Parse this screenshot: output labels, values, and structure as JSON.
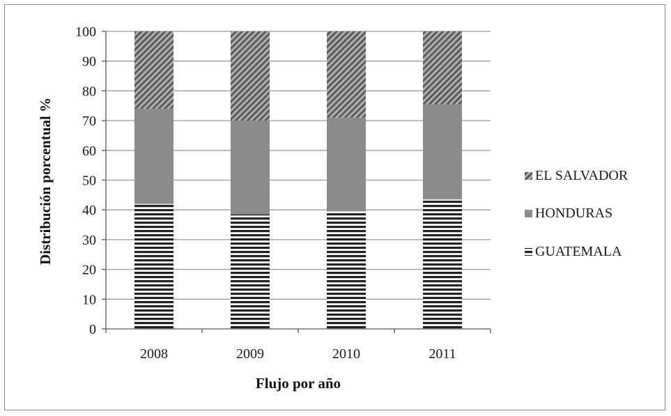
{
  "chart_data": {
    "type": "bar",
    "stacked": true,
    "categories": [
      "2008",
      "2009",
      "2010",
      "2011"
    ],
    "series": [
      {
        "name": "GUATEMALA",
        "values": [
          42,
          38.5,
          39.5,
          43.5
        ],
        "pattern": "horizontal-lines"
      },
      {
        "name": "HONDURAS",
        "values": [
          32,
          31.5,
          31.5,
          32
        ],
        "pattern": "solid-gray"
      },
      {
        "name": "EL SALVADOR",
        "values": [
          26,
          30,
          29,
          24.5
        ],
        "pattern": "diagonal-hatch"
      }
    ],
    "legend_order": [
      "EL SALVADOR",
      "HONDURAS",
      "GUATEMALA"
    ],
    "title": "",
    "xlabel": "Flujo por año",
    "ylabel": "Distribución porcentual %",
    "ylim": [
      0,
      100
    ],
    "yticks": [
      0,
      10,
      20,
      30,
      40,
      50,
      60,
      70,
      80,
      90,
      100
    ],
    "grid": true,
    "legend_position": "right",
    "colors": {
      "gray": "#8c8c8c",
      "line": "#222222",
      "grid": "#9a9a9a"
    }
  }
}
